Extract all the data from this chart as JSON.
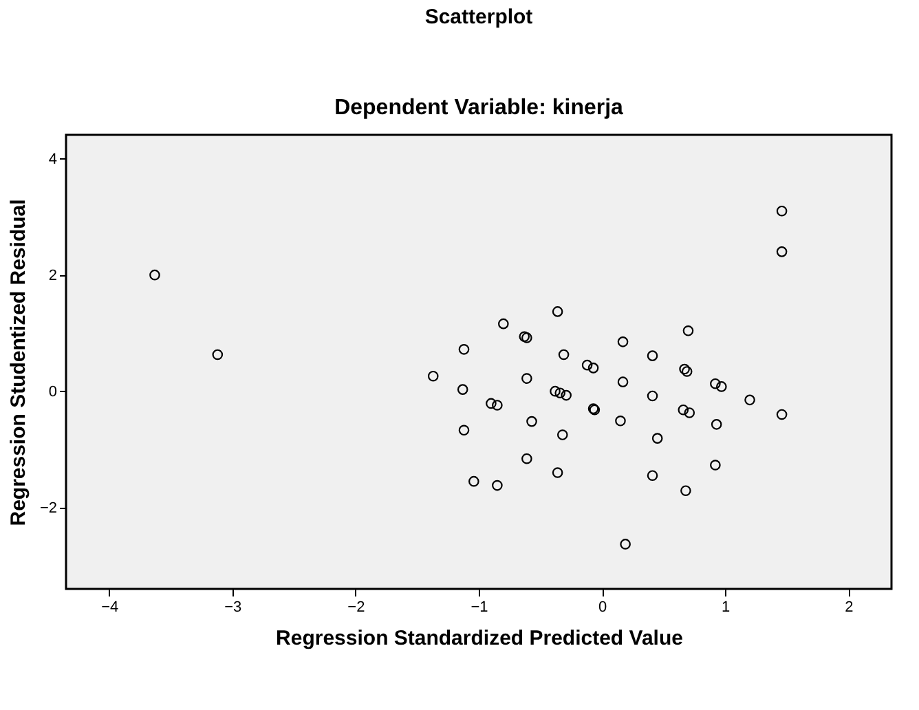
{
  "chart_data": {
    "type": "scatter",
    "title": "Scatterplot",
    "subtitle": "Dependent Variable: kinerja",
    "xlabel": "Regression Standardized Predicted Value",
    "ylabel": "Regression Studentized Residual",
    "xlim": [
      -4.35,
      2.35
    ],
    "ylim": [
      -3.4,
      4.41
    ],
    "xticks": [
      -4,
      -3,
      -2,
      -1,
      0,
      1,
      2
    ],
    "yticks": [
      -2,
      0,
      2,
      4
    ],
    "grid": false,
    "marker": "circle",
    "legend": false,
    "series": [
      {
        "color": "#000000",
        "x": [
          -3.63,
          -3.12,
          -1.37,
          1.46,
          1.46,
          -0.36,
          -0.8,
          0.7,
          -0.63,
          -0.61,
          0.17,
          -1.12,
          -0.31,
          0.41,
          -0.12,
          -0.07,
          -0.61,
          0.67,
          0.69,
          0.17,
          0.92,
          0.97,
          -1.13,
          -0.38,
          -0.34,
          -0.29,
          0.41,
          1.2,
          -0.9,
          -0.85,
          -0.07,
          -0.06,
          0.66,
          0.71,
          1.46,
          0.15,
          -0.57,
          0.93,
          -1.12,
          -0.32,
          0.45,
          -0.61,
          0.92,
          -0.36,
          0.41,
          -1.04,
          -0.85,
          0.68,
          0.19
        ],
        "values": [
          2.0,
          0.63,
          0.26,
          3.1,
          2.4,
          1.37,
          1.16,
          1.04,
          0.94,
          0.92,
          0.85,
          0.72,
          0.63,
          0.61,
          0.45,
          0.4,
          0.22,
          0.38,
          0.34,
          0.16,
          0.13,
          0.08,
          0.03,
          0.0,
          -0.03,
          -0.07,
          -0.08,
          -0.15,
          -0.21,
          -0.24,
          -0.3,
          -0.32,
          -0.32,
          -0.37,
          -0.4,
          -0.51,
          -0.52,
          -0.57,
          -0.67,
          -0.75,
          -0.81,
          -1.16,
          -1.27,
          -1.4,
          -1.45,
          -1.55,
          -1.62,
          -1.71,
          -2.63
        ]
      }
    ]
  }
}
